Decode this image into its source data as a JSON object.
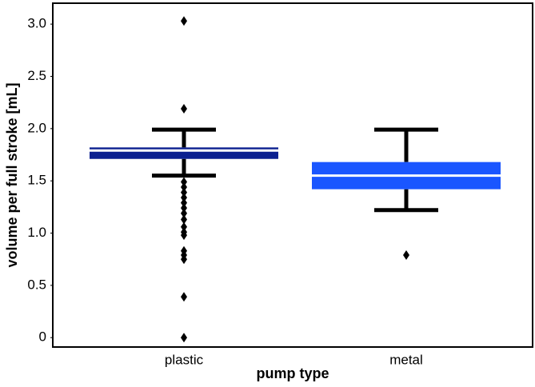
{
  "chart_data": {
    "type": "box",
    "xlabel": "pump type",
    "ylabel": "volume per full stroke [mL]",
    "categories": [
      "plastic",
      "metal"
    ],
    "boxes": [
      {
        "color": "#0b2090",
        "whislo": 1.55,
        "q1": 1.71,
        "median": 1.79,
        "q3": 1.82,
        "whishi": 1.99,
        "outliers": [
          3.03,
          2.19,
          1.49,
          1.44,
          1.39,
          1.34,
          1.29,
          1.24,
          1.19,
          1.13,
          1.06,
          1.01,
          0.98,
          0.83,
          0.79,
          0.75,
          0.39,
          0
        ]
      },
      {
        "color": "#1a56ff",
        "whislo": 1.22,
        "q1": 1.42,
        "median": 1.55,
        "q3": 1.68,
        "whishi": 1.99,
        "outliers": [
          0.79
        ]
      }
    ],
    "ylim": [
      -0.09,
      3.2
    ],
    "yticks": [
      0,
      0.5,
      {
        "value": 1,
        "label": "1.0"
      },
      1.5,
      {
        "value": 2,
        "label": "2.0"
      },
      2.5,
      {
        "value": 3,
        "label": "3.0"
      }
    ],
    "grid": false
  }
}
